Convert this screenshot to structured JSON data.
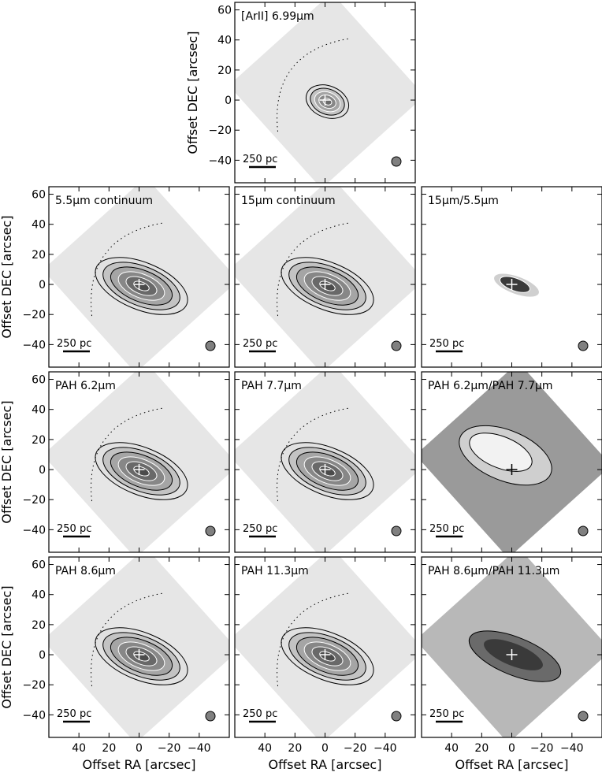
{
  "figure": {
    "xlabel": "Offset RA [arcsec]",
    "ylabel": "Offset DEC [arcsec]",
    "x_ticks": [
      "40",
      "20",
      "0",
      "−20",
      "−40"
    ],
    "y_ticks": [
      "60",
      "40",
      "20",
      "0",
      "−20",
      "−40"
    ],
    "scale_bar_label": "250 pc"
  },
  "colors": {
    "map_light": "#e6e6e6",
    "map_mid": "#9a9a9a",
    "map_dark": "#3a3a3a",
    "beam": "#808080"
  },
  "chart_data": [
    {
      "type": "heatmap",
      "title": "[ArII] 6.99μm",
      "xlabel": "",
      "ylabel": "Offset DEC [arcsec]",
      "xlim": [
        60,
        -60
      ],
      "ylim": [
        -55,
        65
      ],
      "kind": "emission",
      "compact": true
    },
    {
      "type": "heatmap",
      "title": "5.5μm continuum",
      "xlabel": "",
      "ylabel": "Offset DEC [arcsec]",
      "xlim": [
        60,
        -60
      ],
      "ylim": [
        -55,
        65
      ],
      "kind": "emission"
    },
    {
      "type": "heatmap",
      "title": "15μm continuum",
      "xlabel": "",
      "ylabel": "",
      "xlim": [
        60,
        -60
      ],
      "ylim": [
        -55,
        65
      ],
      "kind": "emission"
    },
    {
      "type": "heatmap",
      "title": "15μm/5.5μm",
      "xlabel": "",
      "ylabel": "",
      "xlim": [
        60,
        -60
      ],
      "ylim": [
        -55,
        65
      ],
      "kind": "ratio_small"
    },
    {
      "type": "heatmap",
      "title": "PAH 6.2μm",
      "xlabel": "",
      "ylabel": "Offset DEC [arcsec]",
      "xlim": [
        60,
        -60
      ],
      "ylim": [
        -55,
        65
      ],
      "kind": "emission"
    },
    {
      "type": "heatmap",
      "title": "PAH 7.7μm",
      "xlabel": "",
      "ylabel": "",
      "xlim": [
        60,
        -60
      ],
      "ylim": [
        -55,
        65
      ],
      "kind": "emission"
    },
    {
      "type": "heatmap",
      "title": "PAH 6.2μm/PAH 7.7μm",
      "xlabel": "",
      "ylabel": "",
      "xlim": [
        60,
        -60
      ],
      "ylim": [
        -55,
        65
      ],
      "kind": "ratio_light"
    },
    {
      "type": "heatmap",
      "title": "PAH 8.6μm",
      "xlabel": "Offset RA [arcsec]",
      "ylabel": "Offset DEC [arcsec]",
      "xlim": [
        60,
        -60
      ],
      "ylim": [
        -55,
        65
      ],
      "kind": "emission"
    },
    {
      "type": "heatmap",
      "title": "PAH 11.3μm",
      "xlabel": "Offset RA [arcsec]",
      "ylabel": "",
      "xlim": [
        60,
        -60
      ],
      "ylim": [
        -55,
        65
      ],
      "kind": "emission"
    },
    {
      "type": "heatmap",
      "title": "PAH 8.6μm/PAH 11.3μm",
      "xlabel": "Offset RA [arcsec]",
      "ylabel": "",
      "xlim": [
        60,
        -60
      ],
      "ylim": [
        -55,
        65
      ],
      "kind": "ratio_dark"
    }
  ]
}
